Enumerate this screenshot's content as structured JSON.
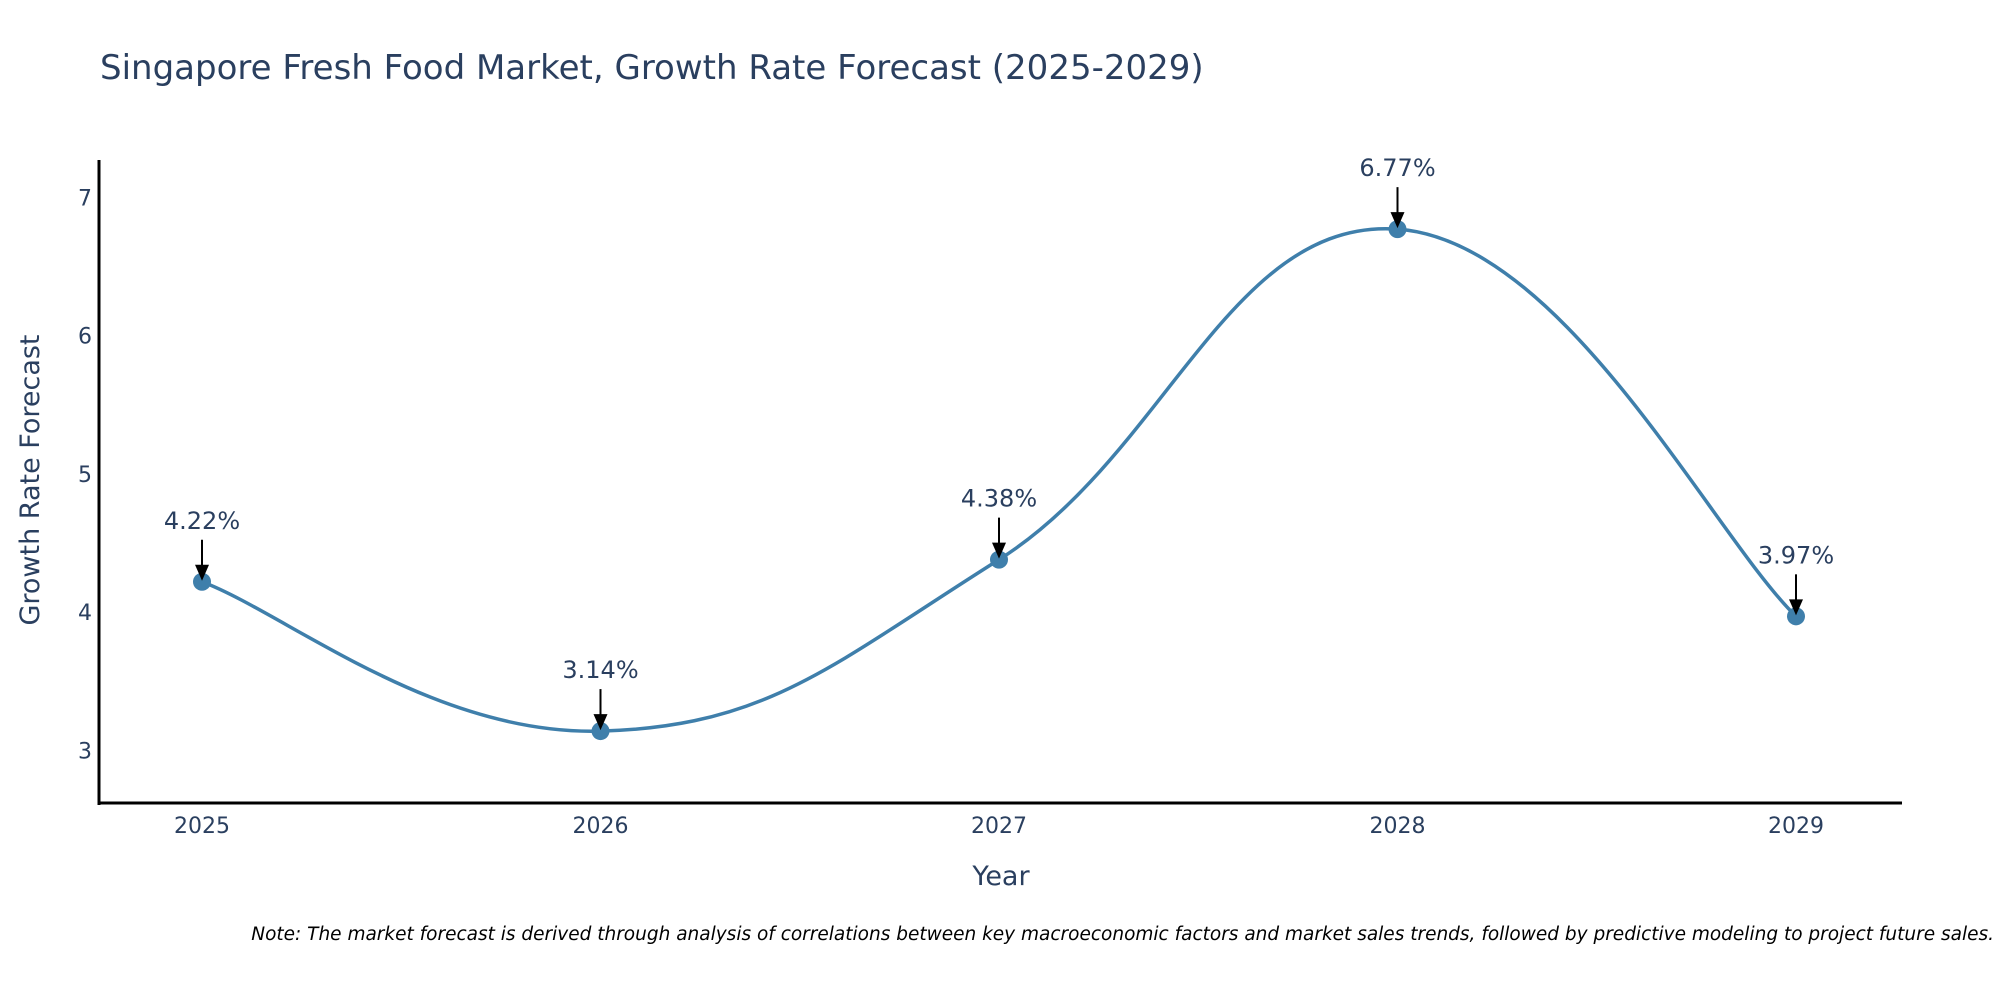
{
  "chart_data": {
    "type": "line",
    "title": "Singapore Fresh Food Market, Growth Rate Forecast (2025-2029)",
    "xlabel": "Year",
    "ylabel": "Growth Rate Forecast",
    "categories": [
      "2025",
      "2026",
      "2027",
      "2028",
      "2029"
    ],
    "series": [
      {
        "name": "Growth Rate Forecast",
        "values": [
          4.22,
          3.14,
          4.38,
          6.77,
          3.97
        ],
        "labels": [
          "4.22%",
          "3.14%",
          "4.38%",
          "6.77%",
          "3.97%"
        ],
        "color": "#3f7fab",
        "line_shape": "spline"
      }
    ],
    "yticks": [
      "3",
      "4",
      "5",
      "6",
      "7"
    ],
    "ylim": [
      2.62,
      7.27
    ],
    "grid": false,
    "note": "Note: The market forecast is derived through analysis of correlations between key macroeconomic factors and market sales trends, followed by predictive modeling to project future sales."
  }
}
